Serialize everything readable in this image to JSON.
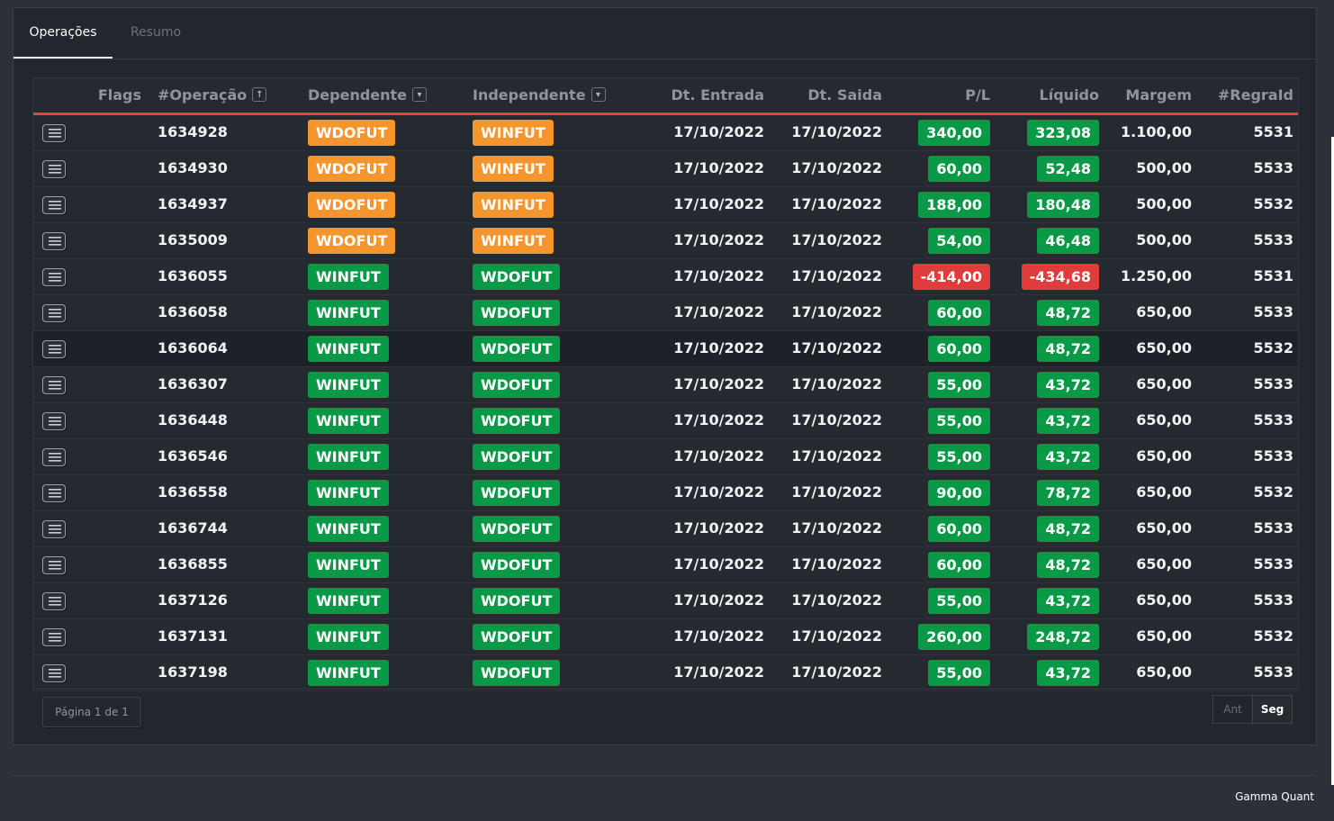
{
  "tabs": [
    {
      "label": "Operações",
      "active": true
    },
    {
      "label": "Resumo",
      "active": false
    }
  ],
  "columns": {
    "flags": "Flags",
    "operacao": "#Operação",
    "dependente": "Dependente",
    "independente": "Independente",
    "dt_entrada": "Dt. Entrada",
    "dt_saida": "Dt. Saida",
    "pl": "P/L",
    "liquido": "Líquido",
    "margem": "Margem",
    "regraid": "#RegraId"
  },
  "sort_icons": {
    "operacao": "arrow-up-icon",
    "dependente": "caret-down-icon",
    "independente": "caret-down-icon"
  },
  "colors": {
    "orange": "#f5952e",
    "green": "#0a9a47",
    "red": "#e13c3c",
    "accent_line": "#e0473a"
  },
  "rows": [
    {
      "op": "1634928",
      "dep": "WDOFUT",
      "dep_color": "orange",
      "ind": "WINFUT",
      "ind_color": "orange",
      "entrada": "17/10/2022",
      "saida": "17/10/2022",
      "pl": "340,00",
      "pl_color": "green",
      "liq": "323,08",
      "liq_color": "green",
      "margem": "1.100,00",
      "regra": "5531"
    },
    {
      "op": "1634930",
      "dep": "WDOFUT",
      "dep_color": "orange",
      "ind": "WINFUT",
      "ind_color": "orange",
      "entrada": "17/10/2022",
      "saida": "17/10/2022",
      "pl": "60,00",
      "pl_color": "green",
      "liq": "52,48",
      "liq_color": "green",
      "margem": "500,00",
      "regra": "5533"
    },
    {
      "op": "1634937",
      "dep": "WDOFUT",
      "dep_color": "orange",
      "ind": "WINFUT",
      "ind_color": "orange",
      "entrada": "17/10/2022",
      "saida": "17/10/2022",
      "pl": "188,00",
      "pl_color": "green",
      "liq": "180,48",
      "liq_color": "green",
      "margem": "500,00",
      "regra": "5532"
    },
    {
      "op": "1635009",
      "dep": "WDOFUT",
      "dep_color": "orange",
      "ind": "WINFUT",
      "ind_color": "orange",
      "entrada": "17/10/2022",
      "saida": "17/10/2022",
      "pl": "54,00",
      "pl_color": "green",
      "liq": "46,48",
      "liq_color": "green",
      "margem": "500,00",
      "regra": "5533"
    },
    {
      "op": "1636055",
      "dep": "WINFUT",
      "dep_color": "green",
      "ind": "WDOFUT",
      "ind_color": "green",
      "entrada": "17/10/2022",
      "saida": "17/10/2022",
      "pl": "-414,00",
      "pl_color": "red",
      "liq": "-434,68",
      "liq_color": "red",
      "margem": "1.250,00",
      "regra": "5531"
    },
    {
      "op": "1636058",
      "dep": "WINFUT",
      "dep_color": "green",
      "ind": "WDOFUT",
      "ind_color": "green",
      "entrada": "17/10/2022",
      "saida": "17/10/2022",
      "pl": "60,00",
      "pl_color": "green",
      "liq": "48,72",
      "liq_color": "green",
      "margem": "650,00",
      "regra": "5533"
    },
    {
      "op": "1636064",
      "dep": "WINFUT",
      "dep_color": "green",
      "ind": "WDOFUT",
      "ind_color": "green",
      "entrada": "17/10/2022",
      "saida": "17/10/2022",
      "pl": "60,00",
      "pl_color": "green",
      "liq": "48,72",
      "liq_color": "green",
      "margem": "650,00",
      "regra": "5532"
    },
    {
      "op": "1636307",
      "dep": "WINFUT",
      "dep_color": "green",
      "ind": "WDOFUT",
      "ind_color": "green",
      "entrada": "17/10/2022",
      "saida": "17/10/2022",
      "pl": "55,00",
      "pl_color": "green",
      "liq": "43,72",
      "liq_color": "green",
      "margem": "650,00",
      "regra": "5533"
    },
    {
      "op": "1636448",
      "dep": "WINFUT",
      "dep_color": "green",
      "ind": "WDOFUT",
      "ind_color": "green",
      "entrada": "17/10/2022",
      "saida": "17/10/2022",
      "pl": "55,00",
      "pl_color": "green",
      "liq": "43,72",
      "liq_color": "green",
      "margem": "650,00",
      "regra": "5533"
    },
    {
      "op": "1636546",
      "dep": "WINFUT",
      "dep_color": "green",
      "ind": "WDOFUT",
      "ind_color": "green",
      "entrada": "17/10/2022",
      "saida": "17/10/2022",
      "pl": "55,00",
      "pl_color": "green",
      "liq": "43,72",
      "liq_color": "green",
      "margem": "650,00",
      "regra": "5533"
    },
    {
      "op": "1636558",
      "dep": "WINFUT",
      "dep_color": "green",
      "ind": "WDOFUT",
      "ind_color": "green",
      "entrada": "17/10/2022",
      "saida": "17/10/2022",
      "pl": "90,00",
      "pl_color": "green",
      "liq": "78,72",
      "liq_color": "green",
      "margem": "650,00",
      "regra": "5532"
    },
    {
      "op": "1636744",
      "dep": "WINFUT",
      "dep_color": "green",
      "ind": "WDOFUT",
      "ind_color": "green",
      "entrada": "17/10/2022",
      "saida": "17/10/2022",
      "pl": "60,00",
      "pl_color": "green",
      "liq": "48,72",
      "liq_color": "green",
      "margem": "650,00",
      "regra": "5533"
    },
    {
      "op": "1636855",
      "dep": "WINFUT",
      "dep_color": "green",
      "ind": "WDOFUT",
      "ind_color": "green",
      "entrada": "17/10/2022",
      "saida": "17/10/2022",
      "pl": "60,00",
      "pl_color": "green",
      "liq": "48,72",
      "liq_color": "green",
      "margem": "650,00",
      "regra": "5533"
    },
    {
      "op": "1637126",
      "dep": "WINFUT",
      "dep_color": "green",
      "ind": "WDOFUT",
      "ind_color": "green",
      "entrada": "17/10/2022",
      "saida": "17/10/2022",
      "pl": "55,00",
      "pl_color": "green",
      "liq": "43,72",
      "liq_color": "green",
      "margem": "650,00",
      "regra": "5533"
    },
    {
      "op": "1637131",
      "dep": "WINFUT",
      "dep_color": "green",
      "ind": "WDOFUT",
      "ind_color": "green",
      "entrada": "17/10/2022",
      "saida": "17/10/2022",
      "pl": "260,00",
      "pl_color": "green",
      "liq": "248,72",
      "liq_color": "green",
      "margem": "650,00",
      "regra": "5532"
    },
    {
      "op": "1637198",
      "dep": "WINFUT",
      "dep_color": "green",
      "ind": "WDOFUT",
      "ind_color": "green",
      "entrada": "17/10/2022",
      "saida": "17/10/2022",
      "pl": "55,00",
      "pl_color": "green",
      "liq": "43,72",
      "liq_color": "green",
      "margem": "650,00",
      "regra": "5533"
    }
  ],
  "pagination": {
    "page_info": "Página 1 de 1",
    "prev_label": "Ant",
    "next_label": "Seg"
  },
  "footer": {
    "brand": "Gamma Quant"
  }
}
